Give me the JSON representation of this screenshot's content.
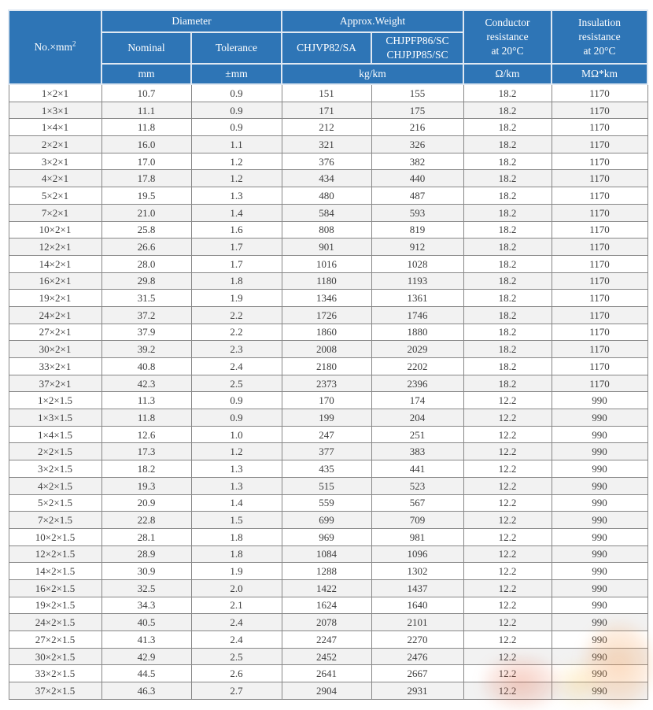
{
  "colors": {
    "header_bg": "#2e75b6",
    "header_grid": "#dfe8f2",
    "grid": "#878787",
    "stripe": "#f2f2f2",
    "text": "#3d3d3d"
  },
  "table": {
    "header": {
      "no_label": "No.×mm",
      "no_sup": "2",
      "diameter": "Diameter",
      "nominal": "Nominal",
      "tolerance": "Tolerance",
      "approx_weight": "Approx.Weight",
      "weight_a": "CHJVP82/SA",
      "weight_b1": "CHJPFP86/SC",
      "weight_b2": "CHJPJP85/SC",
      "conductor_l1": "Conductor",
      "conductor_l2": "resistance",
      "conductor_l3": "at 20°C",
      "insulation_l1": "Insulation",
      "insulation_l2": "resistance",
      "insulation_l3": "at 20°C",
      "unit_mm": "mm",
      "unit_tolerance": "±mm",
      "unit_weight": "kg/km",
      "unit_conductor": "Ω/km",
      "unit_insulation": "MΩ*km"
    },
    "rows": [
      [
        "1×2×1",
        "10.7",
        "0.9",
        "151",
        "155",
        "18.2",
        "1170"
      ],
      [
        "1×3×1",
        "11.1",
        "0.9",
        "171",
        "175",
        "18.2",
        "1170"
      ],
      [
        "1×4×1",
        "11.8",
        "0.9",
        "212",
        "216",
        "18.2",
        "1170"
      ],
      [
        "2×2×1",
        "16.0",
        "1.1",
        "321",
        "326",
        "18.2",
        "1170"
      ],
      [
        "3×2×1",
        "17.0",
        "1.2",
        "376",
        "382",
        "18.2",
        "1170"
      ],
      [
        "4×2×1",
        "17.8",
        "1.2",
        "434",
        "440",
        "18.2",
        "1170"
      ],
      [
        "5×2×1",
        "19.5",
        "1.3",
        "480",
        "487",
        "18.2",
        "1170"
      ],
      [
        "7×2×1",
        "21.0",
        "1.4",
        "584",
        "593",
        "18.2",
        "1170"
      ],
      [
        "10×2×1",
        "25.8",
        "1.6",
        "808",
        "819",
        "18.2",
        "1170"
      ],
      [
        "12×2×1",
        "26.6",
        "1.7",
        "901",
        "912",
        "18.2",
        "1170"
      ],
      [
        "14×2×1",
        "28.0",
        "1.7",
        "1016",
        "1028",
        "18.2",
        "1170"
      ],
      [
        "16×2×1",
        "29.8",
        "1.8",
        "1180",
        "1193",
        "18.2",
        "1170"
      ],
      [
        "19×2×1",
        "31.5",
        "1.9",
        "1346",
        "1361",
        "18.2",
        "1170"
      ],
      [
        "24×2×1",
        "37.2",
        "2.2",
        "1726",
        "1746",
        "18.2",
        "1170"
      ],
      [
        "27×2×1",
        "37.9",
        "2.2",
        "1860",
        "1880",
        "18.2",
        "1170"
      ],
      [
        "30×2×1",
        "39.2",
        "2.3",
        "2008",
        "2029",
        "18.2",
        "1170"
      ],
      [
        "33×2×1",
        "40.8",
        "2.4",
        "2180",
        "2202",
        "18.2",
        "1170"
      ],
      [
        "37×2×1",
        "42.3",
        "2.5",
        "2373",
        "2396",
        "18.2",
        "1170"
      ],
      [
        "1×2×1.5",
        "11.3",
        "0.9",
        "170",
        "174",
        "12.2",
        "990"
      ],
      [
        "1×3×1.5",
        "11.8",
        "0.9",
        "199",
        "204",
        "12.2",
        "990"
      ],
      [
        "1×4×1.5",
        "12.6",
        "1.0",
        "247",
        "251",
        "12.2",
        "990"
      ],
      [
        "2×2×1.5",
        "17.3",
        "1.2",
        "377",
        "383",
        "12.2",
        "990"
      ],
      [
        "3×2×1.5",
        "18.2",
        "1.3",
        "435",
        "441",
        "12.2",
        "990"
      ],
      [
        "4×2×1.5",
        "19.3",
        "1.3",
        "515",
        "523",
        "12.2",
        "990"
      ],
      [
        "5×2×1.5",
        "20.9",
        "1.4",
        "559",
        "567",
        "12.2",
        "990"
      ],
      [
        "7×2×1.5",
        "22.8",
        "1.5",
        "699",
        "709",
        "12.2",
        "990"
      ],
      [
        "10×2×1.5",
        "28.1",
        "1.8",
        "969",
        "981",
        "12.2",
        "990"
      ],
      [
        "12×2×1.5",
        "28.9",
        "1.8",
        "1084",
        "1096",
        "12.2",
        "990"
      ],
      [
        "14×2×1.5",
        "30.9",
        "1.9",
        "1288",
        "1302",
        "12.2",
        "990"
      ],
      [
        "16×2×1.5",
        "32.5",
        "2.0",
        "1422",
        "1437",
        "12.2",
        "990"
      ],
      [
        "19×2×1.5",
        "34.3",
        "2.1",
        "1624",
        "1640",
        "12.2",
        "990"
      ],
      [
        "24×2×1.5",
        "40.5",
        "2.4",
        "2078",
        "2101",
        "12.2",
        "990"
      ],
      [
        "27×2×1.5",
        "41.3",
        "2.4",
        "2247",
        "2270",
        "12.2",
        "990"
      ],
      [
        "30×2×1.5",
        "42.9",
        "2.5",
        "2452",
        "2476",
        "12.2",
        "990"
      ],
      [
        "33×2×1.5",
        "44.5",
        "2.6",
        "2641",
        "2667",
        "12.2",
        "990"
      ],
      [
        "37×2×1.5",
        "46.3",
        "2.7",
        "2904",
        "2931",
        "12.2",
        "990"
      ]
    ]
  }
}
